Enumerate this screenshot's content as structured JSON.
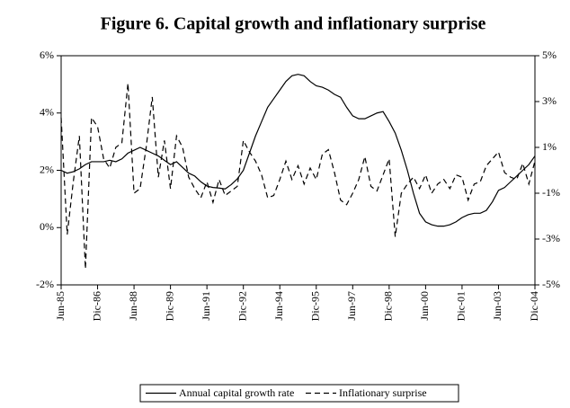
{
  "chart_data": {
    "type": "line",
    "title": "Figure 6. Capital growth and inflationary surprise",
    "categories": [
      "Jun-85",
      null,
      null,
      null,
      null,
      null,
      "Dic-86",
      null,
      null,
      null,
      null,
      null,
      "Jun-88",
      null,
      null,
      null,
      null,
      null,
      "Dic-89",
      null,
      null,
      null,
      null,
      null,
      "Jun-91",
      null,
      null,
      null,
      null,
      null,
      "Dic-92",
      null,
      null,
      null,
      null,
      null,
      "Jun-94",
      null,
      null,
      null,
      null,
      null,
      "Dic-95",
      null,
      null,
      null,
      null,
      null,
      "Jun-97",
      null,
      null,
      null,
      null,
      null,
      "Dic-98",
      null,
      null,
      null,
      null,
      null,
      "Jun-00",
      null,
      null,
      null,
      null,
      null,
      "Dic-01",
      null,
      null,
      null,
      null,
      null,
      "Jun-03",
      null,
      null,
      null,
      null,
      null,
      "Dic-04"
    ],
    "series": [
      {
        "name": "Annual capital growth rate",
        "color": "#000000",
        "style": "solid",
        "values": [
          2.0,
          1.9,
          1.95,
          2.05,
          2.2,
          2.3,
          2.3,
          2.3,
          2.35,
          2.3,
          2.4,
          2.6,
          2.7,
          2.8,
          2.7,
          2.6,
          2.5,
          2.35,
          2.2,
          2.3,
          2.1,
          1.9,
          1.8,
          1.6,
          1.45,
          1.4,
          1.38,
          1.35,
          1.5,
          1.7,
          2.0,
          2.6,
          3.2,
          3.7,
          4.2,
          4.5,
          4.8,
          5.1,
          5.3,
          5.35,
          5.3,
          5.1,
          4.95,
          4.9,
          4.8,
          4.65,
          4.55,
          4.2,
          3.9,
          3.8,
          3.8,
          3.9,
          4.0,
          4.05,
          3.7,
          3.3,
          2.7,
          2.0,
          1.2,
          0.5,
          0.2,
          0.1,
          0.05,
          0.05,
          0.1,
          0.2,
          0.35,
          0.45,
          0.5,
          0.5,
          0.6,
          0.9,
          1.3,
          1.4,
          1.6,
          1.8,
          2.0,
          2.2,
          2.5
        ]
      },
      {
        "name": "Inflationary surprise",
        "color": "#000000",
        "style": "dashed",
        "axis": "y2",
        "values": [
          2.3,
          -2.8,
          -0.5,
          1.5,
          -4.3,
          2.3,
          1.9,
          0.5,
          0.1,
          1.0,
          1.2,
          3.8,
          -1.0,
          -0.8,
          1.0,
          3.2,
          -0.3,
          1.3,
          -0.8,
          1.5,
          1.0,
          -0.3,
          -0.8,
          -1.2,
          -0.5,
          -1.4,
          -0.4,
          -1.1,
          -0.9,
          -0.7,
          1.3,
          0.8,
          0.4,
          -0.2,
          -1.2,
          -1.1,
          -0.4,
          0.4,
          -0.4,
          0.2,
          -0.6,
          0.1,
          -0.4,
          0.7,
          0.9,
          -0.1,
          -1.3,
          -1.5,
          -1.0,
          -0.4,
          0.6,
          -0.7,
          -0.9,
          -0.2,
          0.5,
          -2.9,
          -1.0,
          -0.6,
          -0.3,
          -0.8,
          -0.2,
          -1.0,
          -0.6,
          -0.4,
          -0.8,
          -0.2,
          -0.3,
          -1.3,
          -0.6,
          -0.5,
          0.2,
          0.5,
          0.8,
          -0.1,
          -0.3,
          -0.4,
          0.3,
          -0.6,
          0.4
        ]
      }
    ],
    "ylim": [
      -2,
      6
    ],
    "yticks": [
      {
        "value": -2,
        "label": "-2%"
      },
      {
        "value": 0,
        "label": "0%"
      },
      {
        "value": 2,
        "label": "2%"
      },
      {
        "value": 4,
        "label": "4%"
      },
      {
        "value": 6,
        "label": "6%"
      }
    ],
    "y2lim": [
      -5,
      5
    ],
    "y2ticks": [
      {
        "value": -5,
        "label": "-5%"
      },
      {
        "value": -3,
        "label": "-3%"
      },
      {
        "value": -1,
        "label": "-1%"
      },
      {
        "value": 1,
        "label": "1%"
      },
      {
        "value": 3,
        "label": "3%"
      },
      {
        "value": 5,
        "label": "5%"
      }
    ],
    "grid": false,
    "legend": "bottom"
  }
}
